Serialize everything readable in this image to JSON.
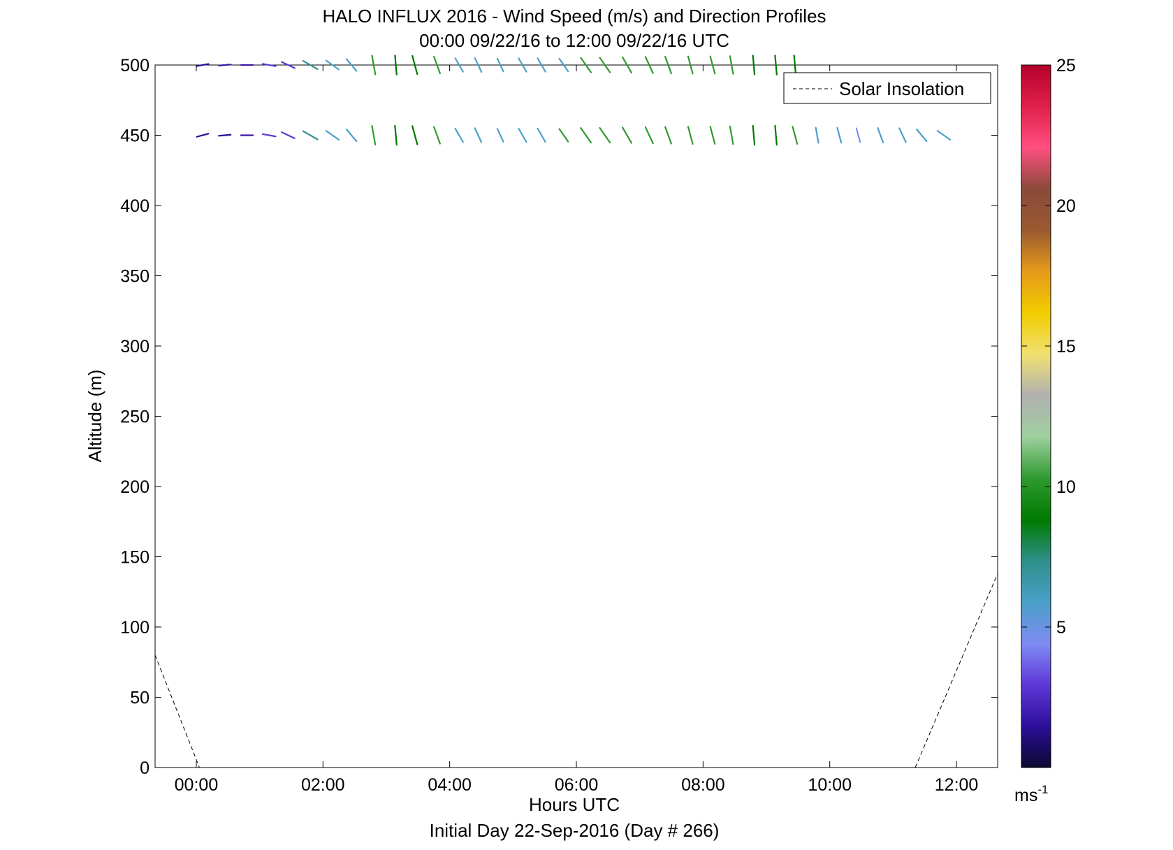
{
  "chart_data": {
    "type": "wind-barb-profile",
    "title": "HALO INFLUX 2016 - Wind Speed (m/s) and Direction Profiles",
    "subtitle": "00:00 09/22/16 to 12:00 09/22/16  UTC",
    "xlabel": "Hours UTC",
    "xlabel2": "Initial Day 22-Sep-2016 (Day # 266)",
    "ylabel": "Altitude (m)",
    "xlim_hours": [
      -0.65,
      12.65
    ],
    "ylim": [
      0,
      500
    ],
    "x_ticks": [
      {
        "value": 0,
        "label": "00:00"
      },
      {
        "value": 2,
        "label": "02:00"
      },
      {
        "value": 4,
        "label": "04:00"
      },
      {
        "value": 6,
        "label": "06:00"
      },
      {
        "value": 8,
        "label": "08:00"
      },
      {
        "value": 10,
        "label": "10:00"
      },
      {
        "value": 12,
        "label": "12:00"
      }
    ],
    "y_ticks": [
      0,
      50,
      100,
      150,
      200,
      250,
      300,
      350,
      400,
      450,
      500
    ],
    "colorbar": {
      "range": [
        0,
        25
      ],
      "ticks": [
        5,
        10,
        15,
        20,
        25
      ],
      "unit_label": "ms",
      "unit_exponent": "-1",
      "colors": [
        "#0b0830",
        "#2c0f9a",
        "#5f37d8",
        "#7f8cf2",
        "#4aa0c9",
        "#2e8f8a",
        "#007a00",
        "#2f9a2f",
        "#9fd09f",
        "#b0b0b0",
        "#f0e070",
        "#f2cc00",
        "#e69a1a",
        "#9a5a30",
        "#8a4a3a",
        "#ff4f80",
        "#e0204a",
        "#b3002a"
      ]
    },
    "legend": {
      "label": "Solar Insolation",
      "style": "dashed",
      "position": "top-right"
    },
    "solar_insolation": [
      {
        "x": -0.65,
        "y": 80
      },
      {
        "x": 0.05,
        "y": 0
      },
      {
        "x": 11.35,
        "y": 0
      },
      {
        "x": 12.65,
        "y": 138
      }
    ],
    "wind_vectors": {
      "times_hours": [
        0.1,
        0.45,
        0.8,
        1.15,
        1.45,
        1.8,
        2.15,
        2.45,
        2.8,
        3.15,
        3.45,
        3.8,
        4.15,
        4.45,
        4.8,
        5.15,
        5.45,
        5.8,
        6.15,
        6.45,
        6.8,
        7.15,
        7.45,
        7.8,
        8.15,
        8.45,
        8.8,
        9.15,
        9.45,
        9.8,
        10.15,
        10.45,
        10.8,
        11.15,
        11.45,
        11.8
      ],
      "levels": [
        {
          "altitude": 500,
          "color": [
            "#2c0f9a",
            "#3a16a8",
            "#3a16a8",
            "#5f37d8",
            "#5f37d8",
            "#2e8f8a",
            "#4aa0c9",
            "#4aa0c9",
            "#2f9a2f",
            "#007a00",
            "#007a00",
            "#2f9a2f",
            "#4aa0c9",
            "#4aa0c9",
            "#4aa0c9",
            "#4aa0c9",
            "#4aa0c9",
            "#4aa0c9",
            "#2f9a2f",
            "#2f9a2f",
            "#2f9a2f",
            "#2f9a2f",
            "#2f9a2f",
            "#2f9a2f",
            "#2f9a2f",
            "#2f9a2f",
            "#007a00",
            "#007a00",
            "#007a00"
          ],
          "speed": [
            3,
            3,
            3,
            4,
            5,
            7,
            6,
            6,
            9,
            9,
            9,
            8,
            6,
            6,
            5,
            6,
            6,
            6,
            8,
            8,
            8,
            8,
            8,
            8,
            8,
            8,
            9,
            9,
            9
          ],
          "dir": [
            260,
            265,
            270,
            280,
            295,
            300,
            305,
            320,
            350,
            355,
            345,
            340,
            330,
            335,
            335,
            330,
            330,
            325,
            325,
            325,
            330,
            335,
            340,
            345,
            345,
            350,
            355,
            355,
            355
          ]
        },
        {
          "altitude": 450,
          "color": [
            "#2c0f9a",
            "#2c0f9a",
            "#3a16a8",
            "#5f37d8",
            "#5f37d8",
            "#2e8f8a",
            "#4aa0c9",
            "#4aa0c9",
            "#2f9a2f",
            "#007a00",
            "#007a00",
            "#2f9a2f",
            "#4aa0c9",
            "#4aa0c9",
            "#4aa0c9",
            "#4aa0c9",
            "#4aa0c9",
            "#2f9a2f",
            "#2f9a2f",
            "#2f9a2f",
            "#2f9a2f",
            "#2f9a2f",
            "#2f9a2f",
            "#2f9a2f",
            "#2f9a2f",
            "#2f9a2f",
            "#007a00",
            "#007a00",
            "#2f9a2f",
            "#4aa0c9",
            "#4aa0c9",
            "#7f8cf2",
            "#4aa0c9",
            "#4aa0c9",
            "#4aa0c9",
            "#4aa0c9"
          ],
          "speed": [
            3,
            3,
            3,
            4,
            5,
            7,
            6,
            6,
            9,
            9,
            9,
            8,
            6,
            6,
            5,
            6,
            6,
            6,
            8,
            8,
            8,
            8,
            8,
            8,
            8,
            8,
            9,
            9,
            8,
            6,
            6,
            5,
            6,
            6,
            6,
            6
          ],
          "dir": [
            255,
            265,
            270,
            280,
            295,
            300,
            305,
            320,
            350,
            355,
            345,
            340,
            330,
            335,
            335,
            330,
            330,
            325,
            325,
            325,
            330,
            335,
            340,
            345,
            345,
            350,
            355,
            355,
            345,
            350,
            345,
            345,
            340,
            335,
            320,
            305
          ]
        }
      ]
    }
  }
}
